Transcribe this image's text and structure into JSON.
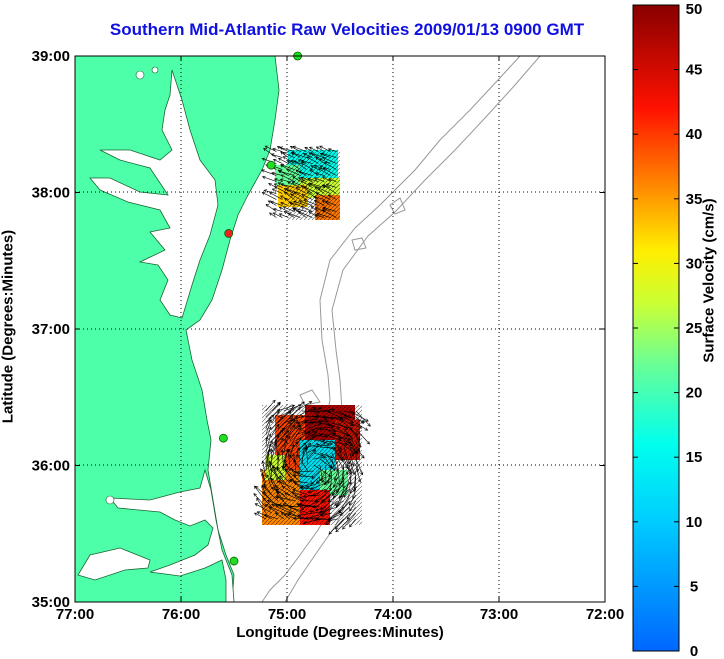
{
  "title": "Southern Mid-Atlantic Raw Velocities 2009/01/13 0900 GMT",
  "xlabel": "Longitude (Degrees:Minutes)",
  "ylabel": "Latitude (Degrees:Minutes)",
  "colorbar": {
    "label": "Surface Velocity (cm/s)",
    "ticks": [
      0,
      5,
      10,
      15,
      20,
      25,
      30,
      35,
      40,
      45,
      50
    ],
    "range": [
      0,
      50
    ]
  },
  "colors": {
    "land": "#4dffa8",
    "title": "#1010e0",
    "station_active": "#22dd22",
    "station_inactive": "#ee2222",
    "bathymetry": "#999999"
  },
  "chart_data": {
    "type": "map",
    "xlim": [
      -77,
      -72
    ],
    "ylim": [
      35,
      39
    ],
    "x_ticks": [
      {
        "value": -77,
        "label": "77:00"
      },
      {
        "value": -76,
        "label": "76:00"
      },
      {
        "value": -75,
        "label": "75:00"
      },
      {
        "value": -74,
        "label": "74:00"
      },
      {
        "value": -73,
        "label": "73:00"
      },
      {
        "value": -72,
        "label": "72:00"
      }
    ],
    "y_ticks": [
      {
        "value": 35,
        "label": "35:00"
      },
      {
        "value": 36,
        "label": "36:00"
      },
      {
        "value": 37,
        "label": "37:00"
      },
      {
        "value": 38,
        "label": "38:00"
      },
      {
        "value": 39,
        "label": "39:00"
      }
    ],
    "grid": true,
    "stations": [
      {
        "lon": -74.9,
        "lat": 39.0,
        "status": "active"
      },
      {
        "lon": -75.15,
        "lat": 38.2,
        "status": "active"
      },
      {
        "lon": -75.55,
        "lat": 37.7,
        "status": "inactive"
      },
      {
        "lon": -75.6,
        "lat": 36.2,
        "status": "active"
      },
      {
        "lon": -75.5,
        "lat": 35.3,
        "status": "active"
      }
    ],
    "velocity_regions": [
      {
        "lon_range": [
          -75.1,
          -74.5
        ],
        "lat_range": [
          37.8,
          38.3
        ],
        "speed_range": [
          10,
          35
        ]
      },
      {
        "lon_range": [
          -75.2,
          -74.3
        ],
        "lat_range": [
          35.6,
          36.4
        ],
        "speed_range": [
          10,
          50
        ]
      }
    ]
  }
}
